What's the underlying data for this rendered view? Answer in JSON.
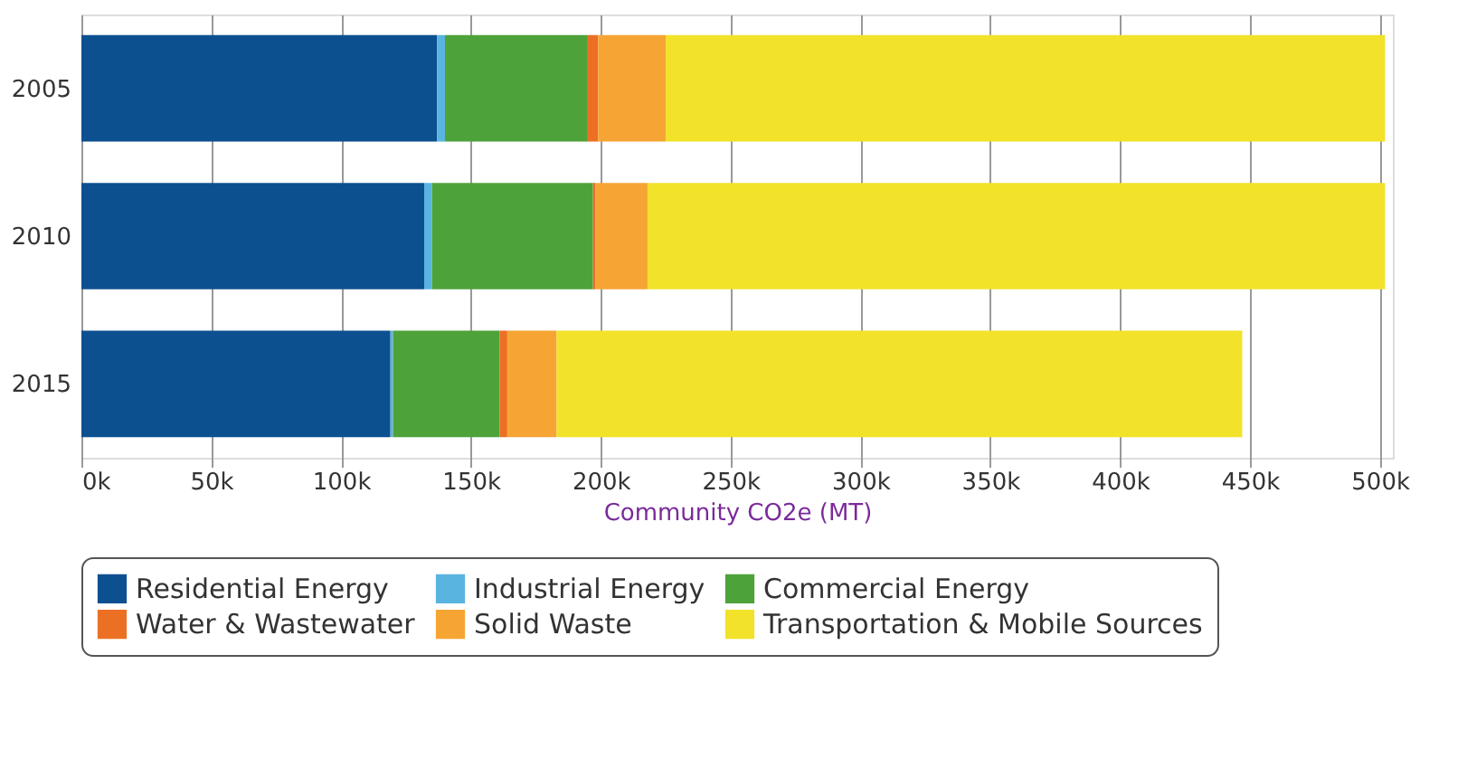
{
  "chart_data": {
    "type": "bar",
    "orientation": "horizontal",
    "stacked": true,
    "categories": [
      "2005",
      "2010",
      "2015"
    ],
    "series": [
      {
        "name": "Residential Energy",
        "color": "#0d5090",
        "values": [
          137000,
          132000,
          119000
        ]
      },
      {
        "name": "Industrial Energy",
        "color": "#5ab4e0",
        "values": [
          3000,
          3000,
          1000
        ]
      },
      {
        "name": "Commercial Energy",
        "color": "#4ea23a",
        "values": [
          55000,
          62000,
          41000
        ]
      },
      {
        "name": "Water & Wastewater",
        "color": "#ec7024",
        "values": [
          4000,
          1000,
          3000
        ]
      },
      {
        "name": "Solid Waste",
        "color": "#f6a534",
        "values": [
          26000,
          20000,
          19000
        ]
      },
      {
        "name": "Transportation & Mobile Sources",
        "color": "#f2e22a",
        "values": [
          277000,
          284000,
          264000
        ]
      }
    ],
    "xlabel": "Community CO2e (MT)",
    "xlim": [
      0,
      505000
    ],
    "xticks": [
      {
        "value": 0,
        "label": "0k"
      },
      {
        "value": 50000,
        "label": "50k"
      },
      {
        "value": 100000,
        "label": "100k"
      },
      {
        "value": 150000,
        "label": "150k"
      },
      {
        "value": 200000,
        "label": "200k"
      },
      {
        "value": 250000,
        "label": "250k"
      },
      {
        "value": 300000,
        "label": "300k"
      },
      {
        "value": 350000,
        "label": "350k"
      },
      {
        "value": 400000,
        "label": "400k"
      },
      {
        "value": 450000,
        "label": "450k"
      },
      {
        "value": 500000,
        "label": "500k"
      }
    ],
    "grid": "x",
    "legend": "bottom"
  }
}
